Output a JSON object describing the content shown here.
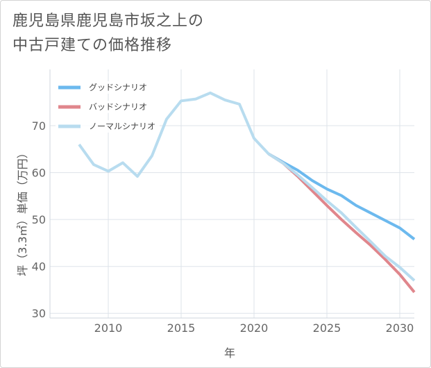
{
  "title_lines": [
    "鹿児島県鹿児島市坂之上の",
    "中古戸建ての価格推移"
  ],
  "chart_data": {
    "type": "line",
    "xlabel": "年",
    "ylabel": "坪（3.3㎡）単価（万円）",
    "xlim": [
      2006,
      2031
    ],
    "ylim": [
      29,
      82
    ],
    "xticks": [
      2010,
      2015,
      2020,
      2025,
      2030
    ],
    "yticks": [
      30,
      40,
      50,
      60,
      70
    ],
    "grid": true,
    "legend_position": "top-left",
    "series": [
      {
        "name": "グッドシナリオ",
        "color": "#6cb9ee",
        "x": [
          2021,
          2022,
          2023,
          2024,
          2025,
          2026,
          2027,
          2028,
          2029,
          2030,
          2031
        ],
        "values": [
          64.0,
          62.2,
          60.5,
          58.3,
          56.5,
          55.1,
          53.0,
          51.4,
          49.8,
          48.2,
          45.8
        ]
      },
      {
        "name": "バッドシナリオ",
        "color": "#e0868c",
        "x": [
          2021,
          2022,
          2023,
          2024,
          2025,
          2026,
          2027,
          2028,
          2029,
          2030,
          2031
        ],
        "values": [
          64.0,
          62.0,
          59.2,
          56.1,
          53.0,
          50.0,
          47.2,
          44.5,
          41.5,
          38.3,
          34.5
        ]
      },
      {
        "name": "ノーマルシナリオ",
        "color": "#b8dcef",
        "x": [
          2008,
          2009,
          2010,
          2011,
          2012,
          2013,
          2014,
          2015,
          2016,
          2017,
          2018,
          2019,
          2020,
          2021,
          2022,
          2023,
          2024,
          2025,
          2026,
          2027,
          2028,
          2029,
          2030,
          2031
        ],
        "values": [
          66.0,
          61.7,
          60.3,
          62.1,
          59.2,
          63.6,
          71.4,
          75.3,
          75.7,
          77.0,
          75.5,
          74.6,
          67.3,
          64.0,
          62.0,
          59.5,
          56.8,
          54.0,
          51.4,
          48.3,
          45.3,
          42.2,
          39.8,
          37.0
        ]
      }
    ]
  }
}
